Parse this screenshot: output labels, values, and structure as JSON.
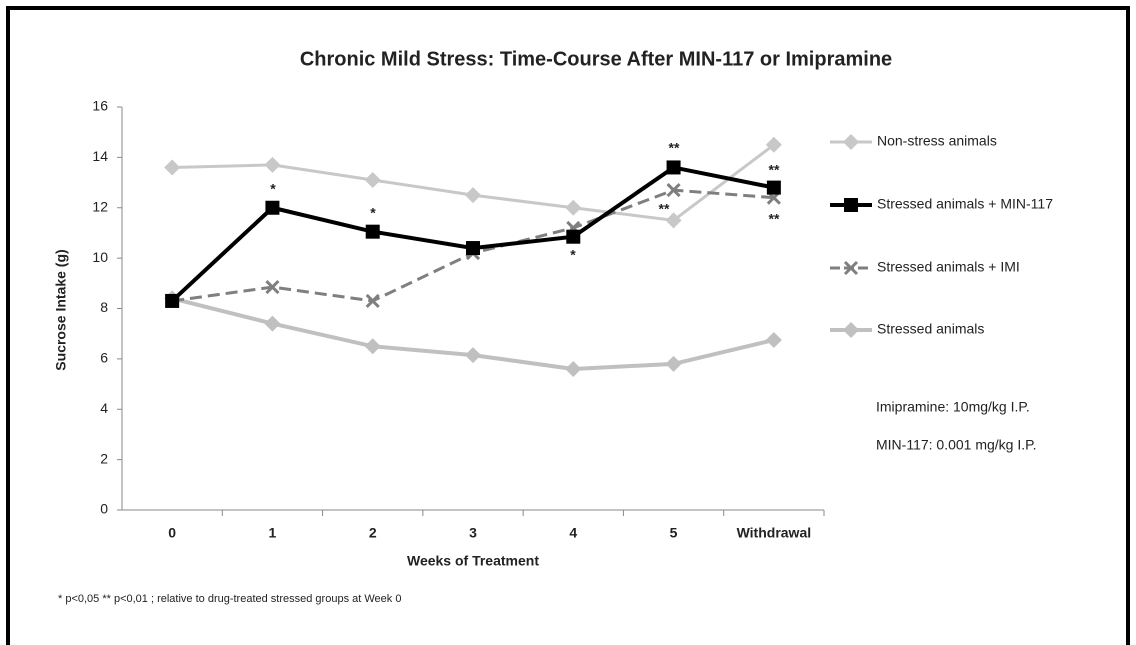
{
  "chart_data": {
    "type": "line",
    "title": "Chronic Mild Stress: Time-Course After MIN-117 or Imipramine",
    "x_label": "Weeks of Treatment",
    "y_label": "Sucrose Intake (g)",
    "categories": [
      "0",
      "1",
      "2",
      "3",
      "4",
      "5",
      "Withdrawal"
    ],
    "series": [
      {
        "name": "Non-stress animals",
        "color": "#c8c8c8",
        "marker": "diamond",
        "dash": false,
        "values": [
          13.6,
          13.7,
          13.1,
          12.5,
          12.0,
          11.5,
          14.5
        ]
      },
      {
        "name": "Stressed animals + MIN-117",
        "color": "#000000",
        "marker": "square",
        "dash": false,
        "values": [
          8.3,
          12.0,
          11.05,
          10.4,
          10.85,
          13.6,
          12.8
        ]
      },
      {
        "name": "Stressed animals + IMI",
        "color": "#7f7f7f",
        "marker": "x",
        "dash": true,
        "values": [
          8.3,
          8.85,
          8.3,
          10.2,
          11.2,
          12.7,
          12.4
        ]
      },
      {
        "name": "Stressed animals",
        "color": "#c0c0c0",
        "marker": "diamond",
        "dash": false,
        "values": [
          8.4,
          7.4,
          6.5,
          6.15,
          5.6,
          5.8,
          6.75
        ]
      }
    ],
    "ylim": [
      0,
      16
    ],
    "yticks": [
      0,
      2,
      4,
      6,
      8,
      10,
      12,
      14,
      16
    ],
    "grid": false,
    "legend": "right",
    "annotations": [
      "*",
      "*",
      "*",
      "**",
      "**",
      "**",
      "**"
    ],
    "notes": [
      "Imipramine: 10mg/kg I.P.",
      "MIN-117: 0.001 mg/kg I.P."
    ],
    "footnote": "* p<0,05   ** p<0,01 ; relative to drug-treated stressed groups at Week 0"
  }
}
